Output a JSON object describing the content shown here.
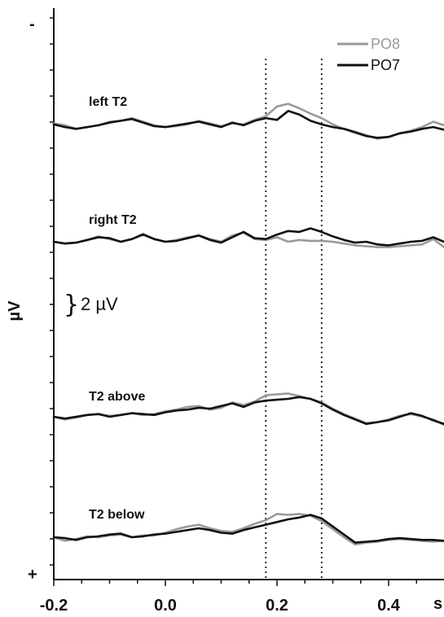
{
  "chart_data": {
    "type": "line",
    "ylabel": "µV",
    "xlabel": "s",
    "xlim": [
      -0.2,
      0.5
    ],
    "x_ticks": [
      "-0.2",
      "0.0",
      "0.2",
      "0.4"
    ],
    "y_top_sign": "-",
    "y_bottom_sign": "+",
    "scale_bar_label": "2 µV",
    "legend": [
      {
        "name": "PO8",
        "color": "#9a9a9a"
      },
      {
        "name": "PO7",
        "color": "#111111"
      }
    ],
    "vlines": [
      0.18,
      0.28
    ],
    "panels": [
      {
        "label": "left T2",
        "x": [
          -0.2,
          -0.18,
          -0.16,
          -0.14,
          -0.12,
          -0.1,
          -0.08,
          -0.06,
          -0.04,
          -0.02,
          0.0,
          0.02,
          0.04,
          0.06,
          0.08,
          0.1,
          0.12,
          0.14,
          0.16,
          0.18,
          0.2,
          0.22,
          0.24,
          0.26,
          0.28,
          0.3,
          0.32,
          0.34,
          0.36,
          0.38,
          0.4,
          0.42,
          0.44,
          0.46,
          0.48,
          0.5
        ],
        "series": [
          {
            "name": "PO8",
            "values": [
              0.3,
              0.1,
              -0.3,
              -0.1,
              0.1,
              0.5,
              0.6,
              0.9,
              0.5,
              0.1,
              -0.1,
              0.0,
              0.2,
              0.6,
              0.3,
              0.0,
              0.3,
              0.2,
              0.7,
              1.1,
              2.2,
              2.5,
              2.0,
              1.4,
              0.9,
              0.2,
              -0.3,
              -0.6,
              -1.0,
              -1.4,
              -1.2,
              -0.8,
              -0.5,
              -0.1,
              0.5,
              0.1
            ]
          },
          {
            "name": "PO7",
            "values": [
              0.2,
              -0.1,
              -0.3,
              -0.1,
              0.1,
              0.4,
              0.6,
              0.8,
              0.4,
              0.0,
              -0.1,
              0.1,
              0.3,
              0.5,
              0.2,
              -0.1,
              0.4,
              0.1,
              0.6,
              0.9,
              0.7,
              1.7,
              1.3,
              0.6,
              0.2,
              -0.1,
              -0.3,
              -0.7,
              -1.1,
              -1.3,
              -1.2,
              -0.8,
              -0.6,
              -0.3,
              -0.1,
              -0.4
            ]
          }
        ]
      },
      {
        "label": "right T2",
        "x": [
          -0.2,
          -0.18,
          -0.16,
          -0.14,
          -0.12,
          -0.1,
          -0.08,
          -0.06,
          -0.04,
          -0.02,
          0.0,
          0.02,
          0.04,
          0.06,
          0.08,
          0.1,
          0.12,
          0.14,
          0.16,
          0.18,
          0.2,
          0.22,
          0.24,
          0.26,
          0.28,
          0.3,
          0.32,
          0.34,
          0.36,
          0.38,
          0.4,
          0.42,
          0.44,
          0.46,
          0.48,
          0.5
        ],
        "series": [
          {
            "name": "PO8",
            "values": [
              0.0,
              -0.2,
              -0.1,
              0.2,
              0.6,
              0.3,
              0.0,
              0.3,
              0.9,
              0.3,
              0.0,
              0.2,
              0.5,
              0.7,
              0.3,
              0.0,
              0.7,
              1.0,
              0.3,
              0.2,
              0.5,
              0.0,
              0.2,
              0.1,
              0.1,
              0.0,
              -0.2,
              -0.4,
              -0.5,
              -0.6,
              -0.6,
              -0.5,
              -0.4,
              -0.3,
              0.3,
              -0.6
            ]
          },
          {
            "name": "PO7",
            "values": [
              0.0,
              -0.2,
              -0.1,
              0.2,
              0.5,
              0.4,
              0.0,
              0.3,
              0.8,
              0.3,
              0.0,
              0.1,
              0.4,
              0.7,
              0.2,
              -0.1,
              0.5,
              1.1,
              0.4,
              0.3,
              0.8,
              1.2,
              1.1,
              1.5,
              1.1,
              0.6,
              0.2,
              -0.1,
              0.0,
              -0.3,
              -0.4,
              -0.2,
              0.0,
              0.1,
              0.5,
              0.0
            ]
          }
        ]
      },
      {
        "label": "T2 above",
        "x": [
          -0.2,
          -0.18,
          -0.16,
          -0.14,
          -0.12,
          -0.1,
          -0.08,
          -0.06,
          -0.04,
          -0.02,
          0.0,
          0.02,
          0.04,
          0.06,
          0.08,
          0.1,
          0.12,
          0.14,
          0.16,
          0.18,
          0.2,
          0.22,
          0.24,
          0.26,
          0.28,
          0.3,
          0.32,
          0.34,
          0.36,
          0.38,
          0.4,
          0.42,
          0.44,
          0.46,
          0.48,
          0.5
        ],
        "series": [
          {
            "name": "PO8",
            "values": [
              0.0,
              -0.3,
              -0.1,
              0.2,
              0.3,
              0.1,
              0.2,
              0.4,
              0.2,
              0.3,
              0.6,
              0.8,
              1.1,
              1.2,
              0.8,
              1.0,
              1.6,
              1.3,
              1.7,
              2.4,
              2.5,
              2.6,
              2.3,
              2.0,
              1.6,
              0.9,
              0.3,
              -0.2,
              -0.7,
              -0.6,
              -0.3,
              0.1,
              0.3,
              0.0,
              -0.3,
              -0.9
            ]
          },
          {
            "name": "PO7",
            "values": [
              0.0,
              -0.2,
              0.0,
              0.2,
              0.3,
              0.0,
              0.2,
              0.4,
              0.3,
              0.2,
              0.5,
              0.7,
              0.8,
              1.0,
              0.9,
              1.2,
              1.5,
              1.1,
              1.6,
              1.8,
              1.9,
              2.0,
              2.2,
              2.0,
              1.5,
              0.8,
              0.2,
              -0.3,
              -0.8,
              -0.6,
              -0.4,
              0.0,
              0.4,
              0.1,
              -0.4,
              -0.8
            ]
          }
        ]
      },
      {
        "label": "T2 below",
        "x": [
          -0.2,
          -0.18,
          -0.16,
          -0.14,
          -0.12,
          -0.1,
          -0.08,
          -0.06,
          -0.04,
          -0.02,
          0.0,
          0.02,
          0.04,
          0.06,
          0.08,
          0.1,
          0.12,
          0.14,
          0.16,
          0.18,
          0.2,
          0.22,
          0.24,
          0.26,
          0.28,
          0.3,
          0.32,
          0.34,
          0.36,
          0.38,
          0.4,
          0.42,
          0.44,
          0.46,
          0.48,
          0.5
        ],
        "series": [
          {
            "name": "PO8",
            "values": [
              0.0,
              -0.4,
              -0.2,
              0.1,
              0.0,
              0.2,
              0.3,
              0.0,
              0.2,
              0.2,
              0.5,
              0.9,
              1.2,
              1.4,
              1.0,
              0.7,
              0.6,
              1.0,
              1.5,
              1.9,
              2.6,
              2.5,
              2.6,
              2.4,
              1.8,
              0.9,
              0.0,
              -0.8,
              -0.6,
              -0.5,
              -0.3,
              -0.2,
              -0.3,
              -0.4,
              -0.5,
              -0.4
            ]
          },
          {
            "name": "PO7",
            "values": [
              0.0,
              -0.1,
              -0.3,
              0.0,
              0.1,
              0.3,
              0.4,
              0.0,
              0.1,
              0.3,
              0.4,
              0.6,
              0.8,
              1.0,
              0.8,
              0.5,
              0.4,
              0.8,
              1.1,
              1.4,
              1.7,
              2.0,
              2.2,
              2.5,
              2.1,
              1.2,
              0.3,
              -0.6,
              -0.5,
              -0.4,
              -0.2,
              -0.1,
              -0.2,
              -0.3,
              -0.3,
              -0.4
            ]
          }
        ]
      }
    ]
  }
}
